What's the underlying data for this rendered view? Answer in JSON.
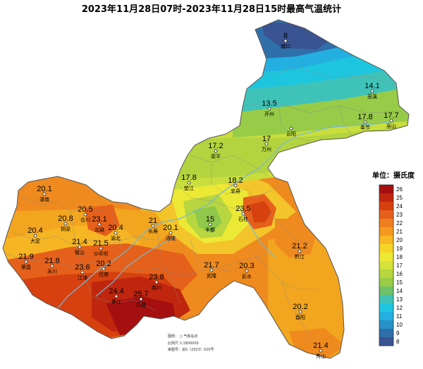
{
  "title": "2023年11月28日07时-2023年11月28日15时最高气温统计",
  "legend": {
    "title": "单位：摄氏度",
    "ticks": [
      "26",
      "25",
      "24",
      "23",
      "22",
      "21",
      "20",
      "19",
      "18",
      "17",
      "16",
      "15",
      "14",
      "13",
      "12",
      "11",
      "10",
      "9",
      "8"
    ],
    "colors": [
      "#a50f0f",
      "#c0260e",
      "#d6410f",
      "#e5601a",
      "#ef7e1f",
      "#f59a1f",
      "#f8b823",
      "#f6d426",
      "#ece935",
      "#d5e23c",
      "#b7d63f",
      "#99cd45",
      "#6fc16a",
      "#3fc3b9",
      "#1dc6de",
      "#23b0e0",
      "#2791c8",
      "#2f6faa",
      "#3a5391"
    ]
  },
  "stations": [
    {
      "name": "城口",
      "value": "8"
    },
    {
      "name": "巫溪",
      "value": "14.1"
    },
    {
      "name": "开州",
      "value": "13.5"
    },
    {
      "name": "奉节",
      "value": "17.8"
    },
    {
      "name": "巫山",
      "value": "17.7"
    },
    {
      "name": "云阳",
      "value": ""
    },
    {
      "name": "万州",
      "value": "17"
    },
    {
      "name": "梁平",
      "value": "17.2"
    },
    {
      "name": "垫江",
      "value": "17.8"
    },
    {
      "name": "忠县",
      "value": "18.2"
    },
    {
      "name": "潼南",
      "value": "20.1"
    },
    {
      "name": "铜梁",
      "value": "20.8"
    },
    {
      "name": "合川",
      "value": "20.5"
    },
    {
      "name": "北碚",
      "value": "23.1"
    },
    {
      "name": "渝北",
      "value": "20.4"
    },
    {
      "name": "长寿",
      "value": "21"
    },
    {
      "name": "涪陵",
      "value": "20.1"
    },
    {
      "name": "丰都",
      "value": "15"
    },
    {
      "name": "石柱",
      "value": "23.5"
    },
    {
      "name": "大足",
      "value": "20.4"
    },
    {
      "name": "璧山",
      "value": "21.4"
    },
    {
      "name": "沙坪坝",
      "value": "21.5"
    },
    {
      "name": "荣昌",
      "value": "21.9"
    },
    {
      "name": "永川",
      "value": "21.8"
    },
    {
      "name": "江津",
      "value": "23.6"
    },
    {
      "name": "巴南",
      "value": "20.2"
    },
    {
      "name": "南川",
      "value": "23.8"
    },
    {
      "name": "綦江",
      "value": "24.4"
    },
    {
      "name": "万盛",
      "value": "25.7"
    },
    {
      "name": "武隆",
      "value": "21.7"
    },
    {
      "name": "彭水",
      "value": "20.3"
    },
    {
      "name": "黔江",
      "value": "21.2"
    },
    {
      "name": "酉阳",
      "value": "20.2"
    },
    {
      "name": "秀山",
      "value": "21.4"
    }
  ],
  "notes": [
    "图例：  ○ 气象站点",
    "比例尺  1:1800000",
    "审图号：渝S（2023）020号"
  ]
}
